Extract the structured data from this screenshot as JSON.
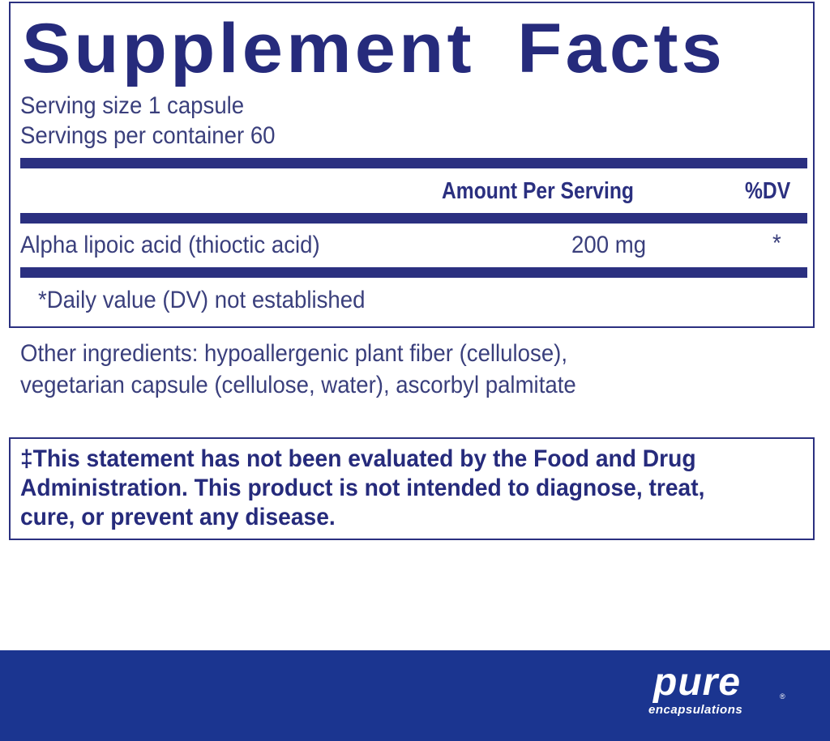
{
  "facts": {
    "title": "Supplement Facts",
    "serving_size": "Serving size  1 capsule",
    "servings_per_container": "Servings per container  60",
    "header_amount": "Amount Per Serving",
    "header_dv": "%DV",
    "ingredients": [
      {
        "name": "Alpha lipoic acid (thioctic acid)",
        "amount": "200 mg",
        "dv": "*"
      }
    ],
    "footnote": "*Daily value (DV) not established"
  },
  "other_ingredients": {
    "line1": "Other ingredients:  hypoallergenic plant fiber (cellulose),",
    "line2": "vegetarian capsule (cellulose, water), ascorbyl palmitate"
  },
  "disclaimer": {
    "line1": "‡This statement has not been evaluated by the Food and Drug",
    "line2": "Administration. This product is not intended to diagnose, treat,",
    "line3": "cure, or prevent any disease."
  },
  "brand": {
    "logo_main": "pure",
    "logo_sub": "encapsulations",
    "registered": "®"
  },
  "colors": {
    "text": "#262b7c",
    "rule": "#2b3080",
    "band": "#1b3590"
  }
}
